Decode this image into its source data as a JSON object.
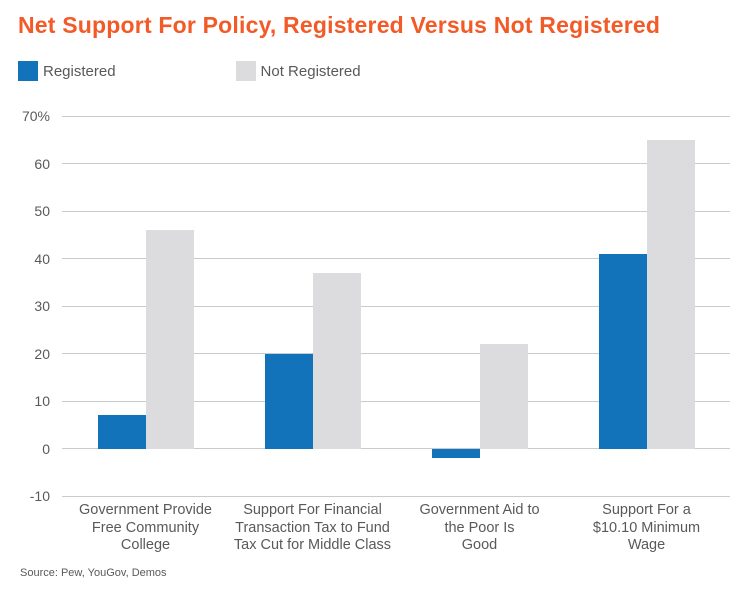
{
  "title": "Net Support For Policy, Registered Versus Not Registered",
  "source": "Source: Pew, YouGov, Demos",
  "colors": {
    "title_orange": "#F25A28",
    "registered_blue": "#1373BA",
    "not_registered_gray": "#DCDCDE",
    "gridline_gray": "#C9CACB",
    "axis_text_gray": "#58595B"
  },
  "legend": {
    "items": [
      {
        "label": "Registered",
        "color": "#1373BA"
      },
      {
        "label": "Not Registered",
        "color": "#DCDCDE"
      }
    ]
  },
  "chart_data": {
    "type": "bar",
    "title": "Net Support For Policy, Registered Versus Not Registered",
    "categories": [
      "Government Provide\nFree Community\nCollege",
      "Support For Financial\nTransaction Tax to Fund\nTax Cut for Middle Class",
      "Government Aid to\nthe Poor Is\nGood",
      "Support For a\n$10.10 Minimum\nWage"
    ],
    "series": [
      {
        "name": "Registered",
        "color": "#1373BA",
        "values": [
          7,
          20,
          -2,
          41
        ]
      },
      {
        "name": "Not Registered",
        "color": "#DCDCDE",
        "values": [
          46,
          37,
          22,
          65
        ]
      }
    ],
    "xlabel": "",
    "ylabel": "",
    "ylim": [
      -10,
      70
    ],
    "yticks": [
      {
        "value": 70,
        "label": "70%"
      },
      {
        "value": 60,
        "label": "60"
      },
      {
        "value": 50,
        "label": "50"
      },
      {
        "value": 40,
        "label": "40"
      },
      {
        "value": 30,
        "label": "30"
      },
      {
        "value": 20,
        "label": "20"
      },
      {
        "value": 10,
        "label": "10"
      },
      {
        "value": 0,
        "label": "0"
      },
      {
        "value": -10,
        "label": "-10"
      }
    ],
    "grid": true,
    "legend_position": "top-left",
    "source": "Source: Pew, YouGov, Demos"
  }
}
